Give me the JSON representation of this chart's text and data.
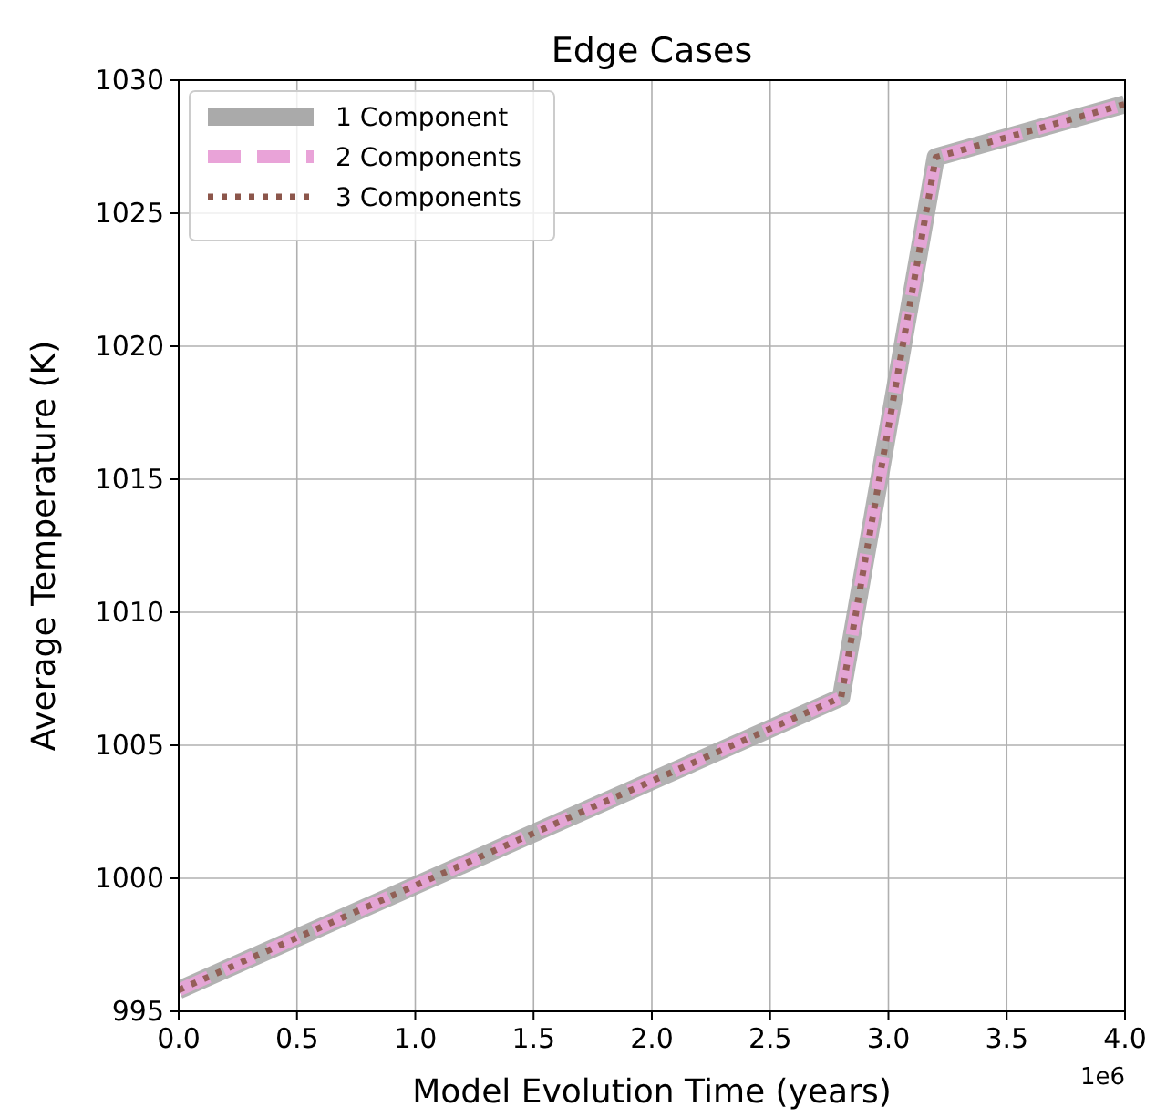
{
  "chart_data": {
    "type": "line",
    "title": "Edge Cases",
    "xlabel": "Model Evolution Time (years)",
    "ylabel": "Average Temperature (K)",
    "annotations": [
      "1e6"
    ],
    "x": [
      0,
      2.8,
      3.2,
      4.0
    ],
    "series": [
      {
        "name": "1 Component",
        "color": "#aaaaaa",
        "line_style": "solid",
        "values": [
          995.8,
          1006.8,
          1027.1,
          1029.1
        ]
      },
      {
        "name": "2 Components",
        "color": "#e9a3d8",
        "line_style": "dashed",
        "values": [
          995.8,
          1006.8,
          1027.1,
          1029.1
        ]
      },
      {
        "name": "3 Components",
        "color": "#8c564b",
        "line_style": "dotted",
        "values": [
          995.8,
          1006.8,
          1027.1,
          1029.1
        ]
      }
    ],
    "xlim": [
      0,
      4
    ],
    "xticks": [
      {
        "value": 0,
        "label": "0.0"
      },
      {
        "value": 0.5,
        "label": "0.5"
      },
      {
        "value": 1,
        "label": "1.0"
      },
      {
        "value": 1.5,
        "label": "1.5"
      },
      {
        "value": 2,
        "label": "2.0"
      },
      {
        "value": 2.5,
        "label": "2.5"
      },
      {
        "value": 3,
        "label": "3.0"
      },
      {
        "value": 3.5,
        "label": "3.5"
      },
      {
        "value": 4,
        "label": "4.0"
      }
    ],
    "ylim": [
      995,
      1030
    ],
    "yticks": [
      995,
      1000,
      1005,
      1010,
      1015,
      1020,
      1025,
      1030
    ],
    "grid": true,
    "legend": "top left",
    "marker": "none"
  }
}
